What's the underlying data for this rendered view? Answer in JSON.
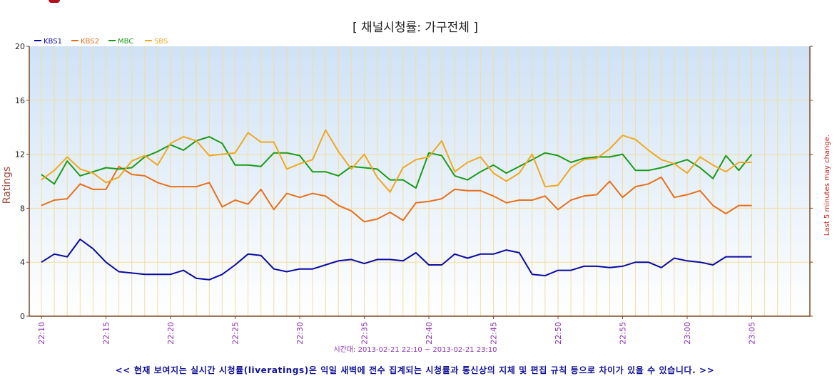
{
  "chart_data": {
    "type": "line",
    "title": "[ 채널시청률: 가구전체 ]",
    "ylabel": "Ratings",
    "y2label": "Last 5 minutes may change.",
    "range_label": "시간대: 2013-02-21 22:10 ~ 2013-02-21 23:10",
    "ylim": [
      0,
      20
    ],
    "yticks": [
      "0",
      "4",
      "8",
      "12",
      "16",
      "20"
    ],
    "xticks": [
      "22:10",
      "22:15",
      "22:20",
      "22:25",
      "22:30",
      "22:35",
      "22:40",
      "22:45",
      "22:50",
      "22:55",
      "23:00",
      "23:05"
    ],
    "x": [
      "22:10",
      "22:11",
      "22:12",
      "22:13",
      "22:14",
      "22:15",
      "22:16",
      "22:17",
      "22:18",
      "22:19",
      "22:20",
      "22:21",
      "22:22",
      "22:23",
      "22:24",
      "22:25",
      "22:26",
      "22:27",
      "22:28",
      "22:29",
      "22:30",
      "22:31",
      "22:32",
      "22:33",
      "22:34",
      "22:35",
      "22:36",
      "22:37",
      "22:38",
      "22:39",
      "22:40",
      "22:41",
      "22:42",
      "22:43",
      "22:44",
      "22:45",
      "22:46",
      "22:47",
      "22:48",
      "22:49",
      "22:50",
      "22:51",
      "22:52",
      "22:53",
      "22:54",
      "22:55",
      "22:56",
      "22:57",
      "22:58",
      "22:59",
      "23:00",
      "23:01",
      "23:02",
      "23:03",
      "23:04",
      "23:05"
    ],
    "grid": true,
    "legend_position": "top-left",
    "series": [
      {
        "name": "KBS1",
        "color": "#0a0aa0",
        "values": [
          4.0,
          4.6,
          4.4,
          5.7,
          5.0,
          4.0,
          3.3,
          3.2,
          3.1,
          3.1,
          3.1,
          3.4,
          2.8,
          2.7,
          3.1,
          3.8,
          4.6,
          4.5,
          3.5,
          3.3,
          3.5,
          3.5,
          3.8,
          4.1,
          4.2,
          3.9,
          4.2,
          4.2,
          4.1,
          4.7,
          3.8,
          3.8,
          4.6,
          4.3,
          4.6,
          4.6,
          4.9,
          4.7,
          3.1,
          3.0,
          3.4,
          3.4,
          3.7,
          3.7,
          3.6,
          3.7,
          4.0,
          4.0,
          3.6,
          4.3,
          4.1,
          4.0,
          3.8,
          4.4,
          4.4,
          4.4
        ]
      },
      {
        "name": "KBS2",
        "color": "#e8701a",
        "values": [
          8.2,
          8.6,
          8.7,
          9.8,
          9.4,
          9.4,
          11.1,
          10.5,
          10.4,
          9.9,
          9.6,
          9.6,
          9.6,
          9.9,
          8.1,
          8.6,
          8.3,
          9.4,
          7.9,
          9.1,
          8.8,
          9.1,
          8.9,
          8.2,
          7.8,
          7.0,
          7.2,
          7.7,
          7.1,
          8.4,
          8.5,
          8.7,
          9.4,
          9.3,
          9.3,
          8.9,
          8.4,
          8.6,
          8.6,
          8.9,
          7.9,
          8.6,
          8.9,
          9.0,
          10.0,
          8.8,
          9.6,
          9.8,
          10.3,
          8.8,
          9.0,
          9.3,
          8.2,
          7.6,
          8.2,
          8.2
        ]
      },
      {
        "name": "MBC",
        "color": "#1a9a1a",
        "values": [
          10.5,
          9.8,
          11.5,
          10.4,
          10.7,
          11.0,
          10.9,
          11.0,
          11.8,
          12.2,
          12.7,
          12.3,
          13.0,
          13.3,
          12.8,
          11.2,
          11.2,
          11.1,
          12.1,
          12.1,
          11.9,
          10.7,
          10.7,
          10.4,
          11.1,
          11.0,
          10.9,
          10.1,
          10.1,
          9.5,
          12.1,
          11.9,
          10.4,
          10.1,
          10.7,
          11.2,
          10.6,
          11.1,
          11.6,
          12.1,
          11.9,
          11.4,
          11.7,
          11.8,
          11.8,
          12.0,
          10.8,
          10.8,
          11.0,
          11.3,
          11.6,
          11.0,
          10.2,
          11.9,
          10.8,
          12.0
        ]
      },
      {
        "name": "SBS",
        "color": "#f0a820",
        "values": [
          10.1,
          10.8,
          11.8,
          10.9,
          10.6,
          9.9,
          10.3,
          11.5,
          11.9,
          11.2,
          12.8,
          13.3,
          13.0,
          11.9,
          12.0,
          12.1,
          13.6,
          12.9,
          12.9,
          10.9,
          11.3,
          11.6,
          13.8,
          12.2,
          10.9,
          12.0,
          10.3,
          9.2,
          11.0,
          11.6,
          11.8,
          13.0,
          10.7,
          11.4,
          11.8,
          10.6,
          10.0,
          10.6,
          12.0,
          9.6,
          9.7,
          11.0,
          11.6,
          11.7,
          12.4,
          13.4,
          13.1,
          12.3,
          11.6,
          11.3,
          10.6,
          11.8,
          11.2,
          10.7,
          11.4,
          11.4
        ]
      }
    ]
  },
  "footnote": "<< 현재 보여지는 실시간 시청률(liveratings)은 익일 새벽에 전수 집계되는 시청률과 통신상의 지체 및 편집 규칙 등으로 차이가 있을 수 있습니다. >>"
}
